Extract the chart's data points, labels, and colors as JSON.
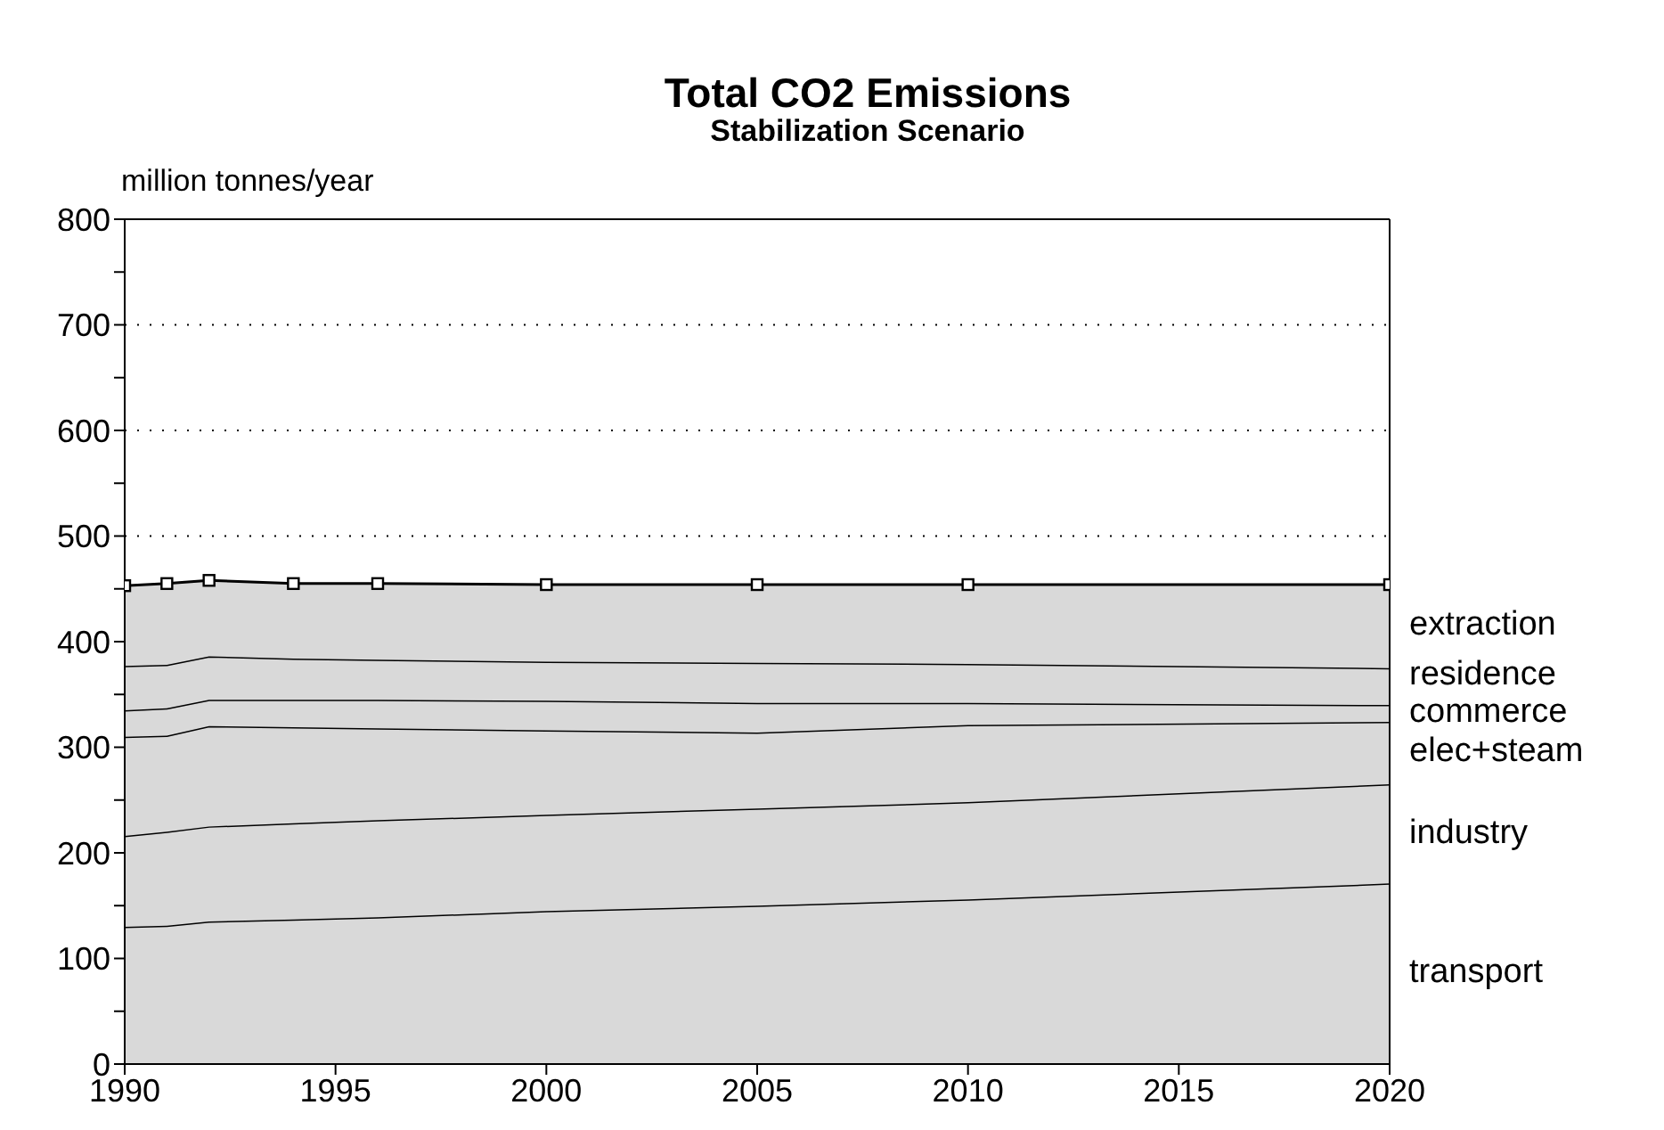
{
  "chart_data": {
    "type": "area",
    "title": "Total CO2 Emissions",
    "subtitle": "Stabilization Scenario",
    "ylabel": "million tonnes/year",
    "stacked": true,
    "x": [
      1990,
      1991,
      1992,
      1994,
      1996,
      2000,
      2005,
      2010,
      2020
    ],
    "series": [
      {
        "name": "transport",
        "color": "#d9d9d9",
        "values": [
          130,
          131,
          135,
          137,
          139,
          145,
          150,
          156,
          171
        ]
      },
      {
        "name": "industry",
        "color": "#d9d9d9",
        "values": [
          86,
          89,
          90,
          91,
          92,
          91,
          92,
          92,
          94
        ]
      },
      {
        "name": "elec+steam",
        "color": "#d9d9d9",
        "values": [
          94,
          91,
          95,
          91,
          87,
          80,
          72,
          73,
          59
        ]
      },
      {
        "name": "commerce",
        "color": "#d9d9d9",
        "values": [
          25,
          26,
          25,
          26,
          27,
          28,
          28,
          21,
          16
        ]
      },
      {
        "name": "residence",
        "color": "#d9d9d9",
        "values": [
          42,
          41,
          41,
          39,
          38,
          37,
          38,
          37,
          35
        ]
      },
      {
        "name": "extraction",
        "color": "#d9d9d9",
        "marker": "square",
        "values": [
          76,
          77,
          72,
          71,
          72,
          73,
          74,
          75,
          79
        ]
      }
    ],
    "xlim": [
      1990,
      2020
    ],
    "xticks": [
      1990,
      1995,
      2000,
      2005,
      2010,
      2015,
      2020
    ],
    "ylim": [
      0,
      800
    ],
    "yticks": [
      0,
      {
        "value": 50,
        "label": null
      },
      100,
      {
        "value": 150,
        "label": null
      },
      200,
      {
        "value": 250,
        "label": null
      },
      300,
      {
        "value": 350,
        "label": null
      },
      400,
      {
        "value": 450,
        "label": null
      },
      500,
      {
        "value": 550,
        "label": null
      },
      600,
      {
        "value": 650,
        "label": null
      },
      700,
      {
        "value": 750,
        "label": null
      },
      800
    ],
    "grid": "y",
    "line_style": "dotted"
  }
}
